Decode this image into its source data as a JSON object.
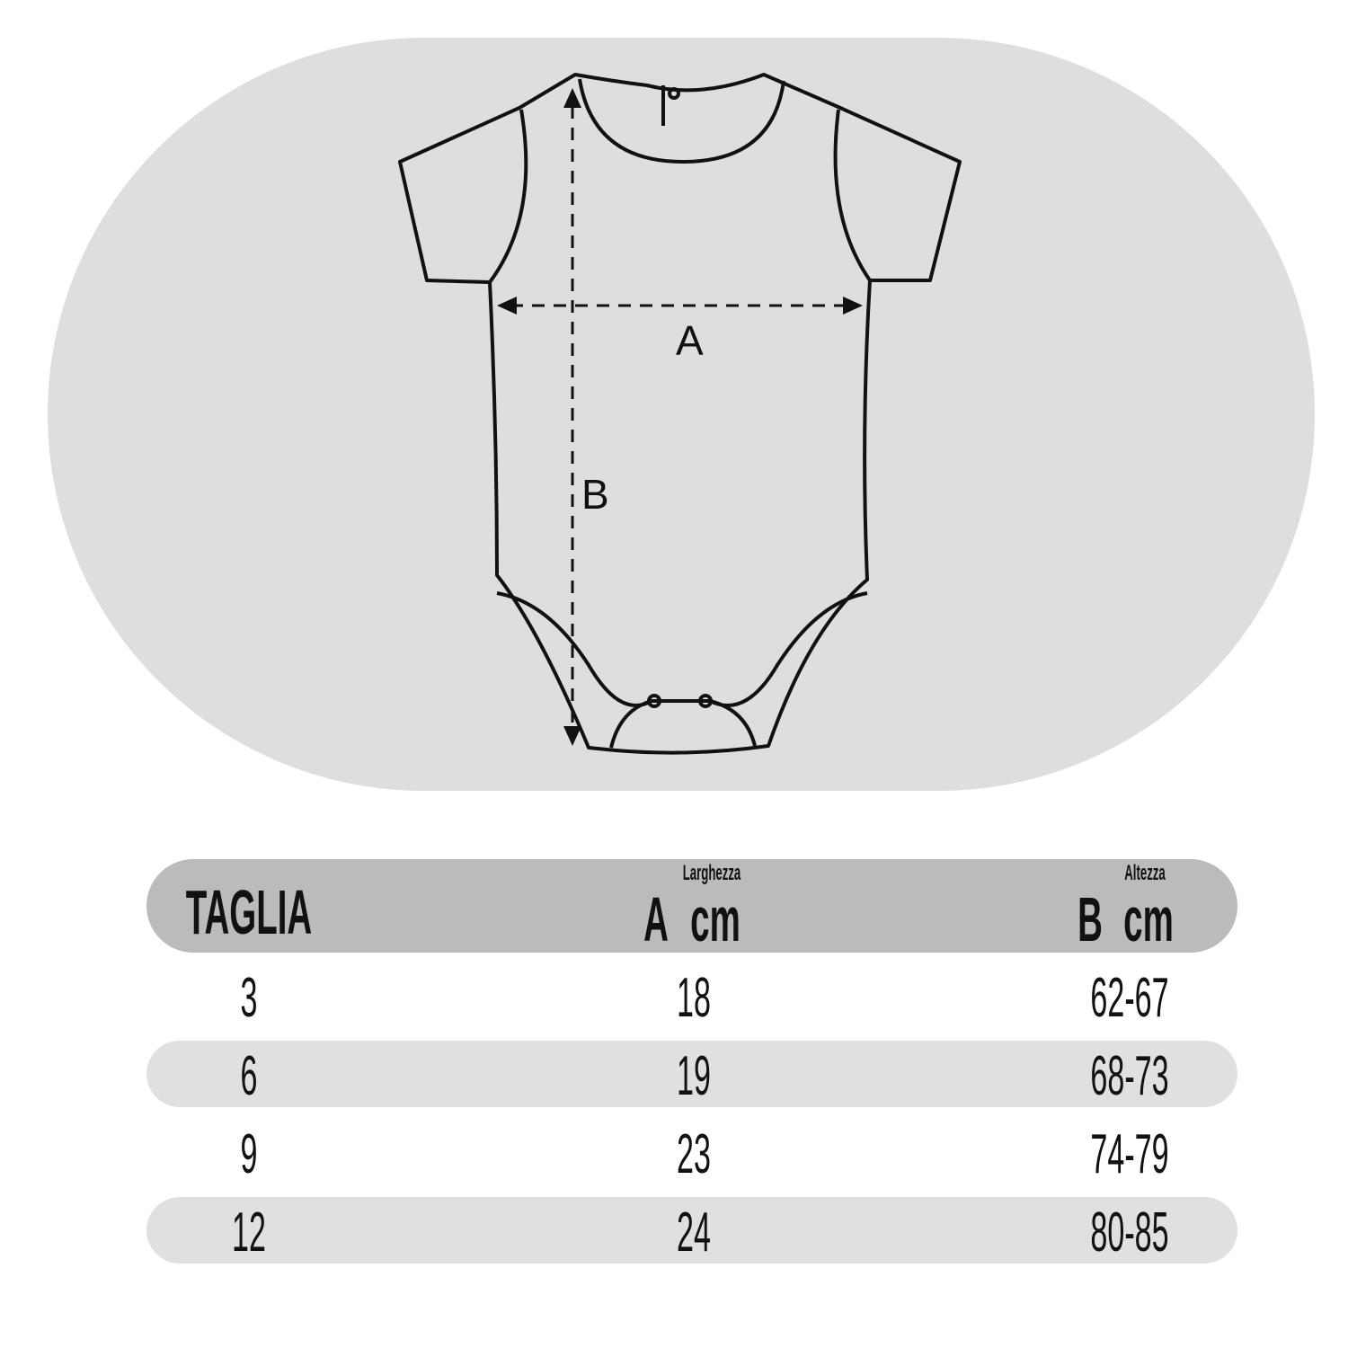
{
  "diagram": {
    "label_a": "A",
    "label_b": "B"
  },
  "table": {
    "headers": {
      "size": "TAGLIA",
      "a_letter": "A",
      "a_unit": "cm",
      "a_desc": "Larghezza",
      "b_letter": "B",
      "b_unit": "cm",
      "b_desc": "Altezza"
    },
    "rows": [
      {
        "size": "3",
        "a": "18",
        "b": "62-67"
      },
      {
        "size": "6",
        "a": "19",
        "b": "68-73"
      },
      {
        "size": "9",
        "a": "23",
        "b": "74-79"
      },
      {
        "size": "12",
        "a": "24",
        "b": "80-85"
      }
    ]
  },
  "colors": {
    "background_pill": "#dedede",
    "header_bar": "#bbbbbb",
    "stripe": "#e0e0e0",
    "line": "#111111"
  }
}
